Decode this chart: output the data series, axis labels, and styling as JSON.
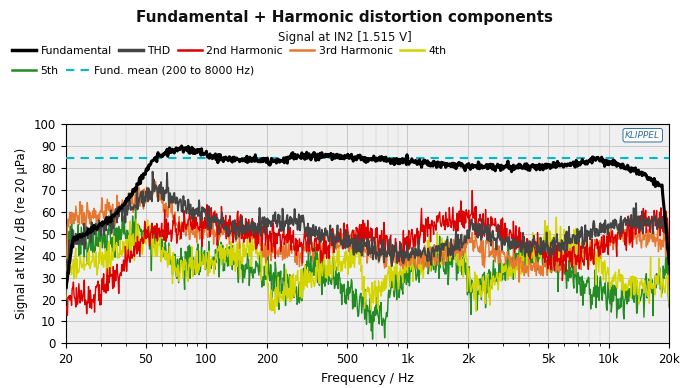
{
  "title": "Fundamental + Harmonic distortion components",
  "subtitle": "Signal at IN2 [1.515 V]",
  "ylabel": "Signal at IN2 / dB (re 20 μPa)",
  "xlabel": "Frequency / Hz",
  "ylim": [
    0,
    100
  ],
  "xlim": [
    20,
    20000
  ],
  "yticks": [
    0,
    10,
    20,
    30,
    40,
    50,
    60,
    70,
    80,
    90,
    100
  ],
  "xtick_positions": [
    20,
    50,
    100,
    200,
    500,
    1000,
    2000,
    5000,
    10000,
    20000
  ],
  "xtick_labels": [
    "20",
    "50",
    "100",
    "200",
    "500",
    "1k",
    "2k",
    "5k",
    "10k",
    "20k"
  ],
  "fund_mean_level": 84.5,
  "background_color": "#f0f0f0",
  "grid_color": "#c8c8c8",
  "colors": {
    "fundamental": "#000000",
    "thd": "#444444",
    "h2": "#dd0000",
    "h3": "#e87830",
    "h4": "#d4d400",
    "h5": "#228B22",
    "fund_mean": "#00bbcc"
  },
  "klippel_color": "#3070a0"
}
